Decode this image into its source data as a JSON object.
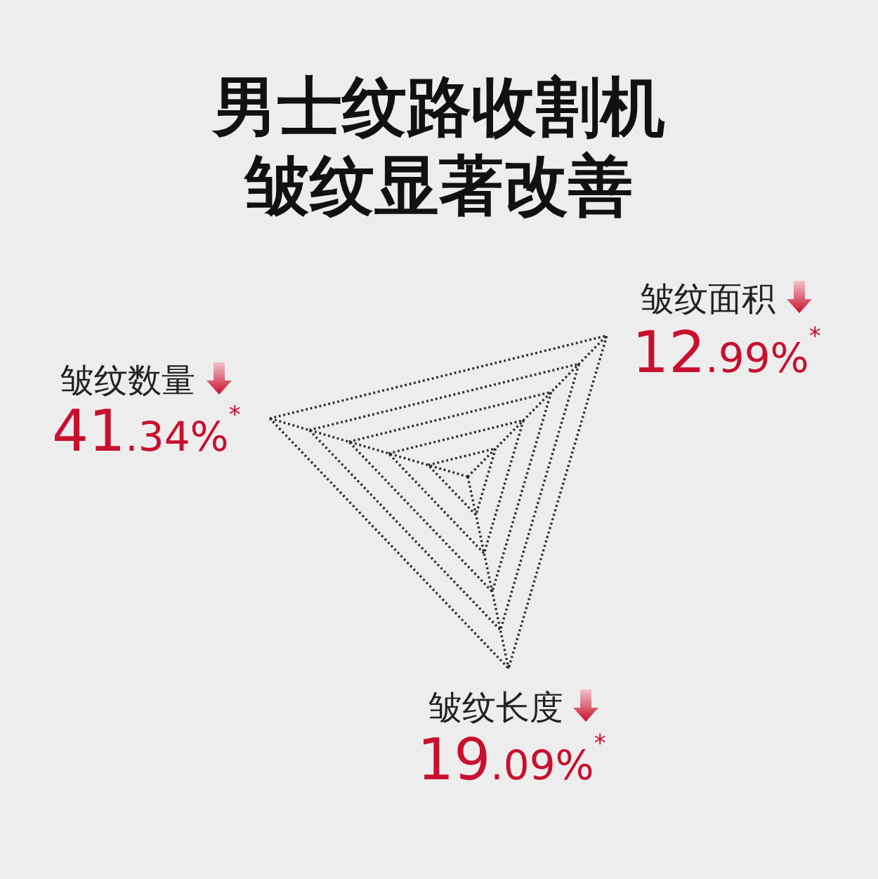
{
  "chart_data": {
    "type": "other",
    "title": "男士纹路收割机",
    "subtitle": "皱纹显著改善",
    "categories": [
      "皱纹数量",
      "皱纹面积",
      "皱纹长度"
    ],
    "values": [
      41.34,
      12.99,
      19.09
    ],
    "value_labels": [
      "41.34%$^{*}$",
      "12.99%$^{*}$",
      "19.09%$^{*}$"
    ]
  }
}
